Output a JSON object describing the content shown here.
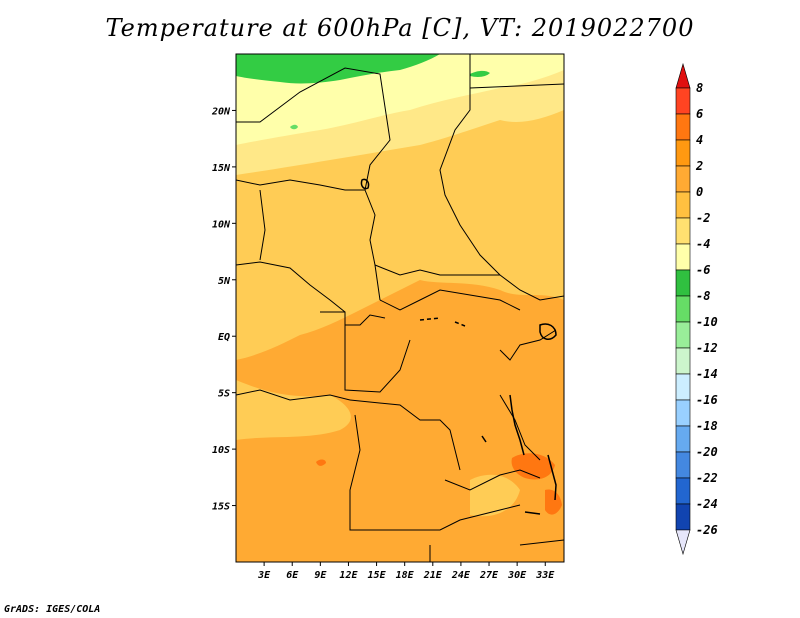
{
  "title": "Temperature at 600hPa [C], VT: 2019022700",
  "credit": "GrADS: IGES/COLA",
  "colors": {
    "green_dark": "#33cc44",
    "green_mid": "#66dd66",
    "pale_yellow": "#ffffaa",
    "light_yellow": "#ffe888",
    "light_orange": "#ffcc55",
    "orange": "#ffaa33",
    "deep_orange": "#ff9911",
    "red_orange": "#ff6622"
  },
  "chart_data": {
    "type": "heatmap",
    "title": "Temperature at 600hPa [C], VT: 2019022700",
    "x_ticks": [
      "3E",
      "6E",
      "9E",
      "12E",
      "15E",
      "18E",
      "21E",
      "24E",
      "27E",
      "30E",
      "33E"
    ],
    "x_tick_values": [
      3,
      6,
      9,
      12,
      15,
      18,
      21,
      24,
      27,
      30,
      33
    ],
    "y_ticks": [
      "20N",
      "15N",
      "10N",
      "5N",
      "EQ",
      "5S",
      "10S",
      "15S"
    ],
    "y_tick_values": [
      20,
      15,
      10,
      5,
      0,
      -5,
      -10,
      -15
    ],
    "lon_range": [
      0,
      35
    ],
    "lat_range": [
      -20,
      25
    ],
    "colorbar": {
      "levels": [
        "8",
        "6",
        "4",
        "2",
        "0",
        "-2",
        "-4",
        "-6",
        "-8",
        "-10",
        "-12",
        "-14",
        "-16",
        "-18",
        "-20",
        "-22",
        "-24",
        "-26"
      ],
      "colors": [
        "#e01010",
        "#ff4422",
        "#ff7711",
        "#ff9911",
        "#ffaa33",
        "#ffc040",
        "#ffe070",
        "#ffffaa",
        "#30c040",
        "#66dd66",
        "#99ee99",
        "#ccf5cc",
        "#cceeff",
        "#99d0ff",
        "#66aaf0",
        "#4488e0",
        "#2266d0",
        "#1144b0",
        "#082a90",
        "#000066"
      ]
    }
  }
}
